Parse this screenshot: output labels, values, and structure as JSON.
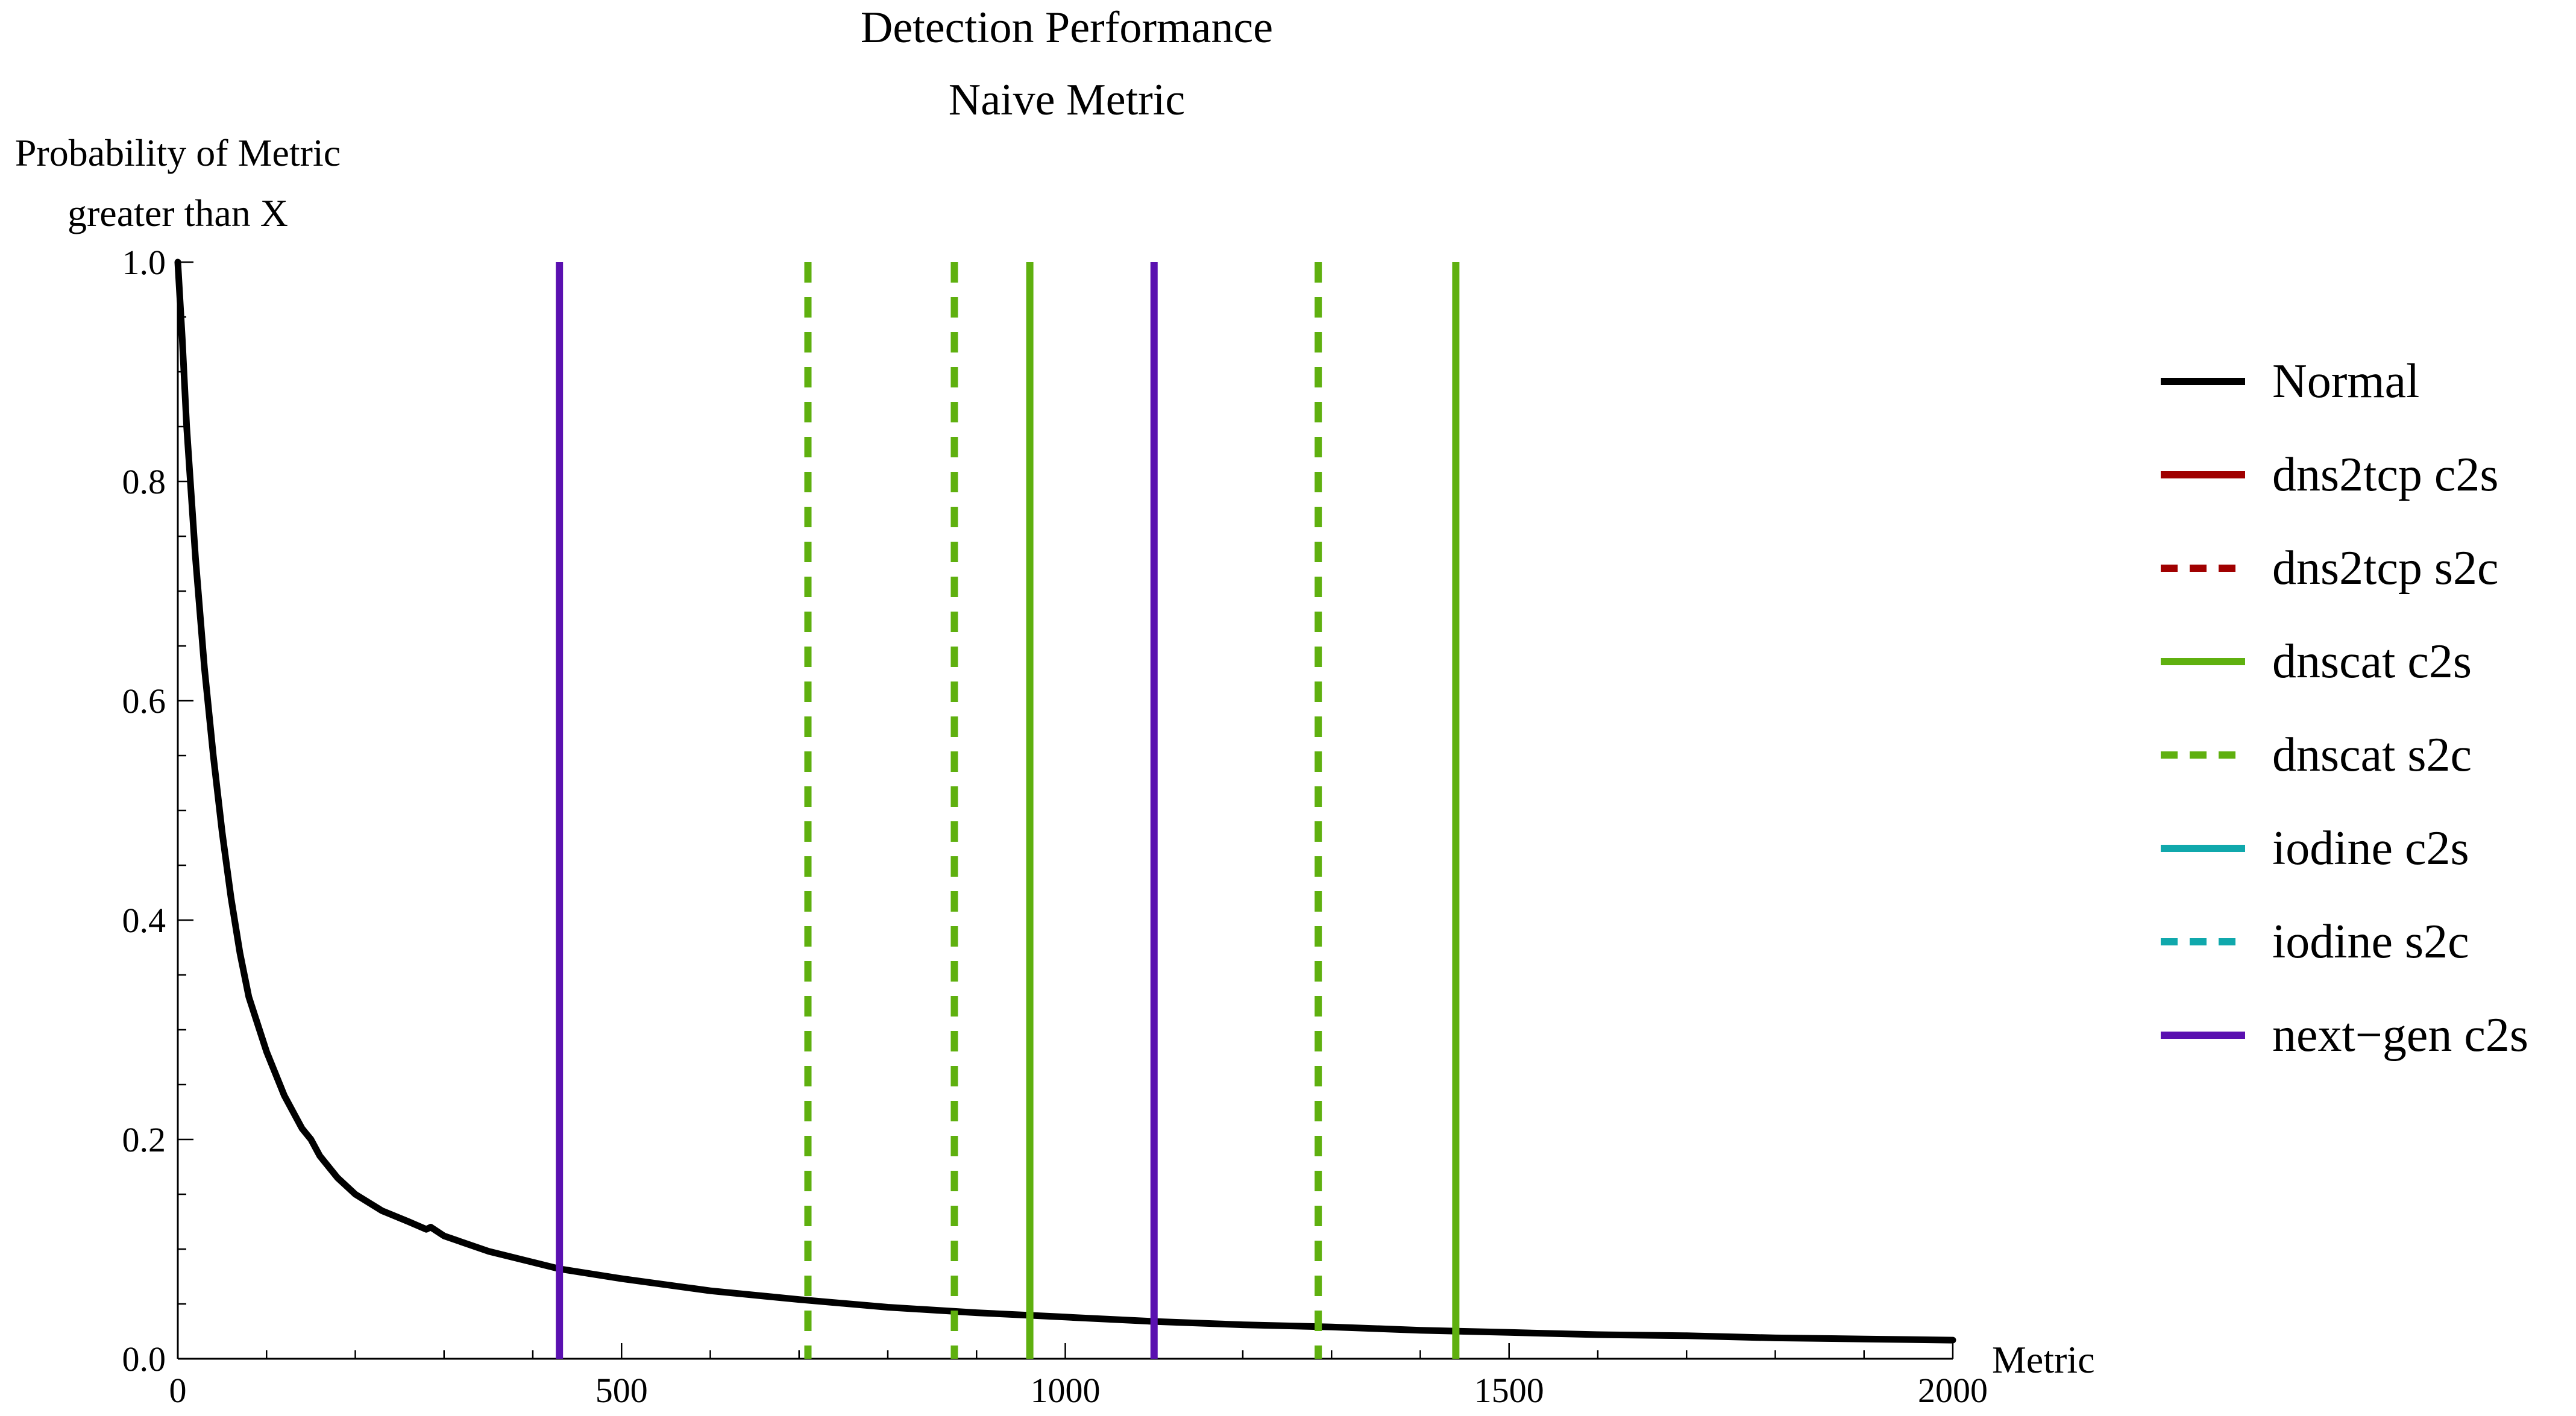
{
  "chart_data": {
    "type": "line",
    "title": "Detection Performance",
    "subtitle": "Naive Metric",
    "ylabel": "Probability of Metric greater than X",
    "ylabel_lines": [
      "Probability of Metric",
      "greater than X"
    ],
    "xlabel": "Metric",
    "xlim": [
      0,
      2000
    ],
    "ylim": [
      0,
      1
    ],
    "x_ticks": [
      0,
      500,
      1000,
      1500,
      2000
    ],
    "x_tick_labels": [
      "0",
      "500",
      "1000",
      "1500",
      "2000"
    ],
    "y_ticks": [
      0,
      0.2,
      0.4,
      0.6,
      0.8,
      1.0
    ],
    "y_tick_labels": [
      "0.0",
      "0.2",
      "0.4",
      "0.6",
      "0.8",
      "1.0"
    ],
    "grid": false,
    "legend_position": "right",
    "series": [
      {
        "name": "Normal",
        "color": "#000000",
        "dash": "solid",
        "kind": "curve",
        "x": [
          0,
          5,
          10,
          20,
          30,
          40,
          50,
          60,
          70,
          80,
          100,
          120,
          140,
          150,
          160,
          180,
          200,
          230,
          260,
          280,
          285,
          300,
          350,
          400,
          430,
          500,
          600,
          700,
          800,
          900,
          1000,
          1100,
          1200,
          1300,
          1400,
          1500,
          1600,
          1700,
          1800,
          1900,
          2000
        ],
        "y": [
          1.0,
          0.93,
          0.85,
          0.73,
          0.63,
          0.55,
          0.48,
          0.42,
          0.37,
          0.33,
          0.28,
          0.24,
          0.21,
          0.2,
          0.185,
          0.165,
          0.15,
          0.135,
          0.125,
          0.118,
          0.12,
          0.112,
          0.098,
          0.088,
          0.082,
          0.073,
          0.062,
          0.054,
          0.047,
          0.042,
          0.038,
          0.034,
          0.031,
          0.029,
          0.026,
          0.024,
          0.022,
          0.021,
          0.019,
          0.018,
          0.017
        ]
      },
      {
        "name": "dns2tcp c2s",
        "color": "#a00000",
        "dash": "solid",
        "kind": "vlines",
        "x": []
      },
      {
        "name": "dns2tcp s2c",
        "color": "#a00000",
        "dash": "dashed",
        "kind": "vlines",
        "x": []
      },
      {
        "name": "dnscat c2s",
        "color": "#5fb00f",
        "dash": "solid",
        "kind": "vlines",
        "x": [
          960,
          1440
        ]
      },
      {
        "name": "dnscat s2c",
        "color": "#5fb00f",
        "dash": "dashed",
        "kind": "vlines",
        "x": [
          710,
          875,
          1285
        ]
      },
      {
        "name": "iodine c2s",
        "color": "#10a8ac",
        "dash": "solid",
        "kind": "vlines",
        "x": []
      },
      {
        "name": "iodine s2c",
        "color": "#10a8ac",
        "dash": "dashed",
        "kind": "vlines",
        "x": []
      },
      {
        "name": "next−gen c2s",
        "color": "#5a10b0",
        "dash": "solid",
        "kind": "vlines",
        "x": [
          430,
          1100
        ]
      }
    ]
  }
}
